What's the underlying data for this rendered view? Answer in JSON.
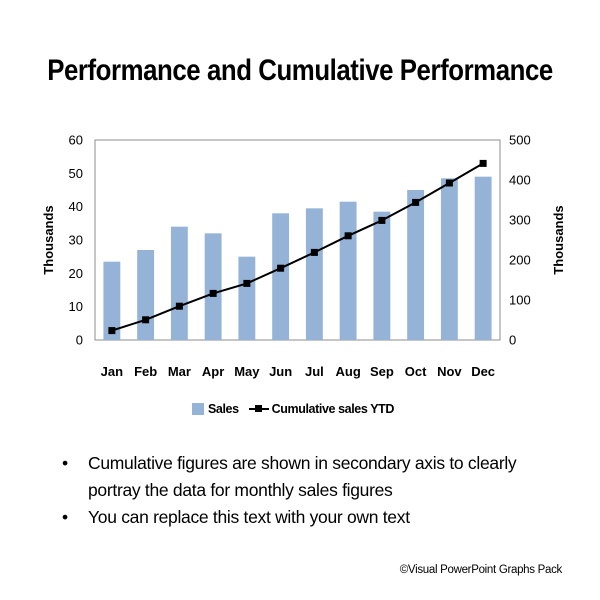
{
  "title": "Performance and Cumulative Performance",
  "chart_data": {
    "type": "bar",
    "categories": [
      "Jan",
      "Feb",
      "Mar",
      "Apr",
      "May",
      "Jun",
      "Jul",
      "Aug",
      "Sep",
      "Oct",
      "Nov",
      "Dec"
    ],
    "series": [
      {
        "name": "Sales",
        "type": "bar",
        "axis": "primary",
        "values": [
          23.5,
          27,
          34,
          32,
          25,
          38,
          39.5,
          41.5,
          38.5,
          45,
          48.5,
          49
        ],
        "color": "#95B3D7"
      },
      {
        "name": "Cumulative sales YTD",
        "type": "line",
        "axis": "secondary",
        "values": [
          23.5,
          50.5,
          84.5,
          116.5,
          141.5,
          179.5,
          219,
          260.5,
          299,
          344,
          392.5,
          441.5
        ],
        "color": "#000000",
        "marker": "square"
      }
    ],
    "ylabel": "Thousands",
    "y2label": "Thousands",
    "ylim": [
      0,
      60
    ],
    "yticks": [
      0,
      10,
      20,
      30,
      40,
      50,
      60
    ],
    "y2lim": [
      0,
      500
    ],
    "y2ticks": [
      0,
      100,
      200,
      300,
      400,
      500
    ],
    "grid": false,
    "legend": "bottom"
  },
  "legend": {
    "sales": "Sales",
    "cumulative": "Cumulative sales YTD"
  },
  "bullets": [
    "Cumulative figures are shown in secondary axis to clearly portray the data for monthly sales figures",
    "You can replace this text with your own text"
  ],
  "footer": "©Visual PowerPoint Graphs Pack"
}
